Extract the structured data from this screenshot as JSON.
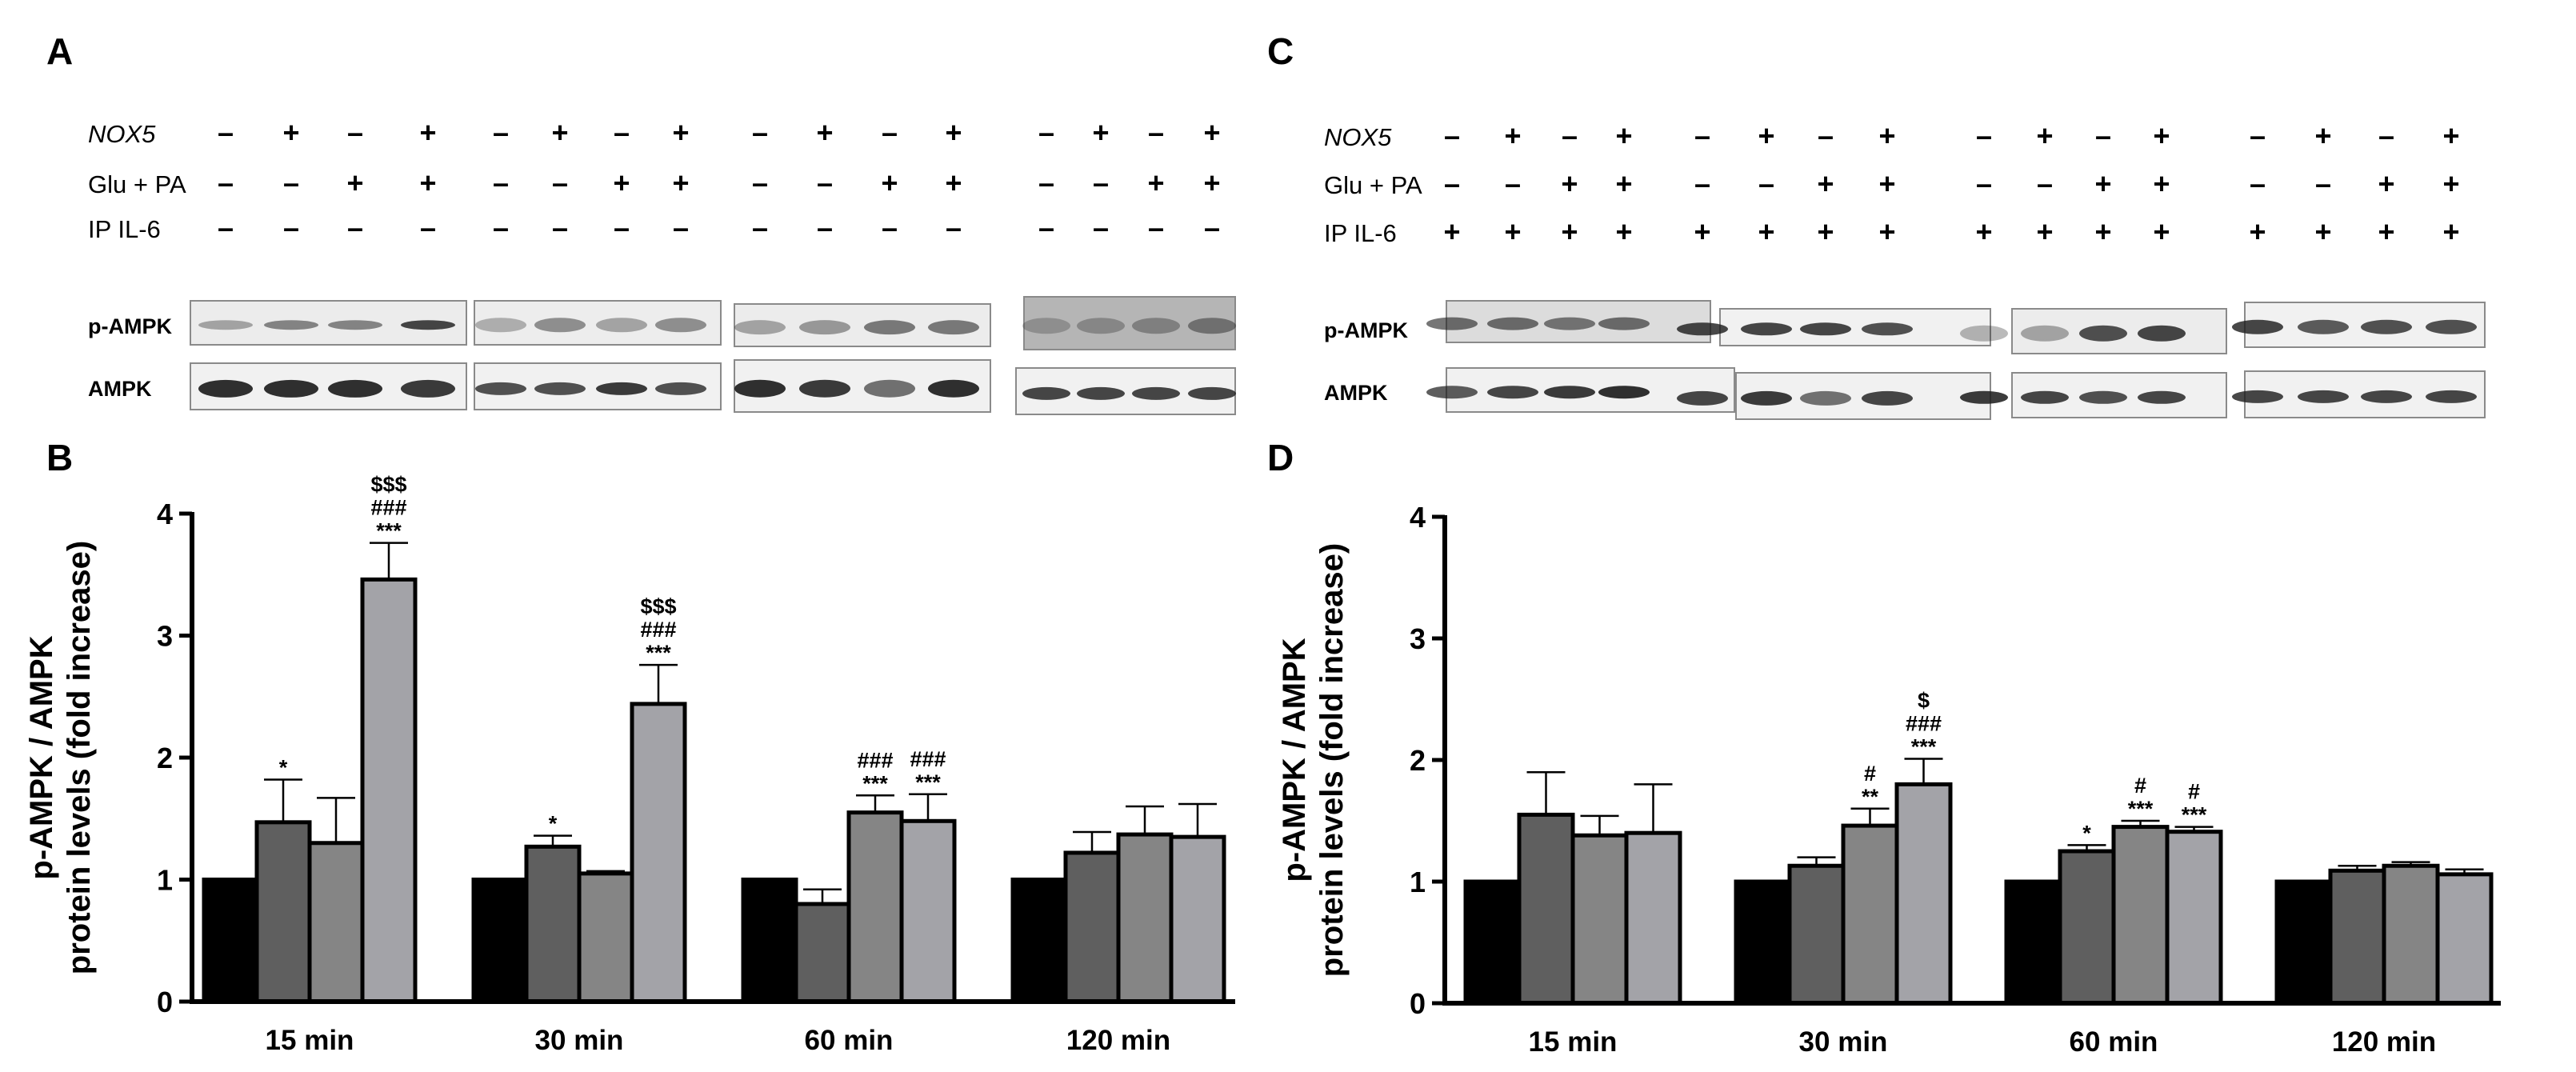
{
  "panels": {
    "A": "A",
    "B": "B",
    "C": "C",
    "D": "D"
  },
  "blot_labels": {
    "nox5": "NOX5",
    "glu_pa": "Glu + PA",
    "ip_il6": "IP IL-6",
    "p_ampk": "p-AMPK",
    "ampk": "AMPK"
  },
  "blot_A": {
    "nox5": [
      "-",
      "+",
      "-",
      "+",
      "-",
      "+",
      "-",
      "+",
      "-",
      "+",
      "-",
      "+",
      "-",
      "+",
      "-",
      "+"
    ],
    "glu_pa": [
      "-",
      "-",
      "+",
      "+",
      "-",
      "-",
      "+",
      "+",
      "-",
      "-",
      "+",
      "+",
      "-",
      "-",
      "+",
      "+"
    ],
    "ip_il6": [
      "-",
      "-",
      "-",
      "-",
      "-",
      "-",
      "-",
      "-",
      "-",
      "-",
      "-",
      "-",
      "-",
      "-",
      "-",
      "-"
    ]
  },
  "blot_C": {
    "nox5": [
      "-",
      "+",
      "-",
      "+",
      "-",
      "+",
      "-",
      "+",
      "-",
      "+",
      "-",
      "+",
      "-",
      "+",
      "-",
      "+"
    ],
    "glu_pa": [
      "-",
      "-",
      "+",
      "+",
      "-",
      "-",
      "+",
      "+",
      "-",
      "-",
      "+",
      "+",
      "-",
      "-",
      "+",
      "+"
    ],
    "ip_il6": [
      "+",
      "+",
      "+",
      "+",
      "+",
      "+",
      "+",
      "+",
      "+",
      "+",
      "+",
      "+",
      "+",
      "+",
      "+",
      "+"
    ]
  },
  "chart_data": [
    {
      "panel": "B",
      "type": "bar",
      "categories": [
        "15 min",
        "30 min",
        "60 min",
        "120 min"
      ],
      "ylabel_line1": "p-AMPK / AMPK",
      "ylabel_line2": "protein levels (fold increase)",
      "ylim": [
        0,
        4
      ],
      "yticks": [
        0,
        1,
        2,
        3,
        4
      ],
      "series": [
        {
          "values": [
            1.0,
            1.0,
            1.0,
            1.0
          ],
          "errors": [
            0,
            0,
            0,
            0
          ],
          "color": "#000000"
        },
        {
          "values": [
            1.47,
            1.27,
            0.8,
            1.22
          ],
          "errors": [
            0.35,
            0.09,
            0.12,
            0.17
          ],
          "color": "#5f5f5f"
        },
        {
          "values": [
            1.3,
            1.05,
            1.55,
            1.37
          ],
          "errors": [
            0.37,
            0.02,
            0.14,
            0.23
          ],
          "color": "#858585"
        },
        {
          "values": [
            3.46,
            2.44,
            1.48,
            1.35
          ],
          "errors": [
            0.3,
            0.32,
            0.22,
            0.27
          ],
          "color": "#a3a3a8"
        }
      ],
      "annotations": [
        {
          "category": 0,
          "series": 1,
          "lines": [
            "*"
          ]
        },
        {
          "category": 0,
          "series": 3,
          "lines": [
            "$$$",
            "###",
            "***"
          ]
        },
        {
          "category": 1,
          "series": 1,
          "lines": [
            "*"
          ]
        },
        {
          "category": 1,
          "series": 3,
          "lines": [
            "$$$",
            "###",
            "***"
          ]
        },
        {
          "category": 2,
          "series": 2,
          "lines": [
            "###",
            "***"
          ]
        },
        {
          "category": 2,
          "series": 3,
          "lines": [
            "###",
            "***"
          ]
        }
      ]
    },
    {
      "panel": "D",
      "type": "bar",
      "categories": [
        "15 min",
        "30 min",
        "60 min",
        "120 min"
      ],
      "ylabel_line1": "p-AMPK / AMPK",
      "ylabel_line2": "protein levels (fold increase)",
      "ylim": [
        0,
        4
      ],
      "yticks": [
        0,
        1,
        2,
        3,
        4
      ],
      "series": [
        {
          "values": [
            1.0,
            1.0,
            1.0,
            1.0
          ],
          "errors": [
            0,
            0,
            0,
            0
          ],
          "color": "#000000"
        },
        {
          "values": [
            1.55,
            1.13,
            1.25,
            1.09
          ],
          "errors": [
            0.35,
            0.07,
            0.05,
            0.04
          ],
          "color": "#5f5f5f"
        },
        {
          "values": [
            1.38,
            1.46,
            1.45,
            1.13
          ],
          "errors": [
            0.16,
            0.14,
            0.05,
            0.03
          ],
          "color": "#858585"
        },
        {
          "values": [
            1.4,
            1.8,
            1.41,
            1.06
          ],
          "errors": [
            0.4,
            0.21,
            0.04,
            0.04
          ],
          "color": "#a3a3a8"
        }
      ],
      "annotations": [
        {
          "category": 1,
          "series": 2,
          "lines": [
            "#",
            "**"
          ]
        },
        {
          "category": 1,
          "series": 3,
          "lines": [
            "$",
            "###",
            "***"
          ]
        },
        {
          "category": 2,
          "series": 1,
          "lines": [
            "*"
          ]
        },
        {
          "category": 2,
          "series": 2,
          "lines": [
            "#",
            "***"
          ]
        },
        {
          "category": 2,
          "series": 3,
          "lines": [
            "#",
            "***"
          ]
        }
      ]
    }
  ]
}
